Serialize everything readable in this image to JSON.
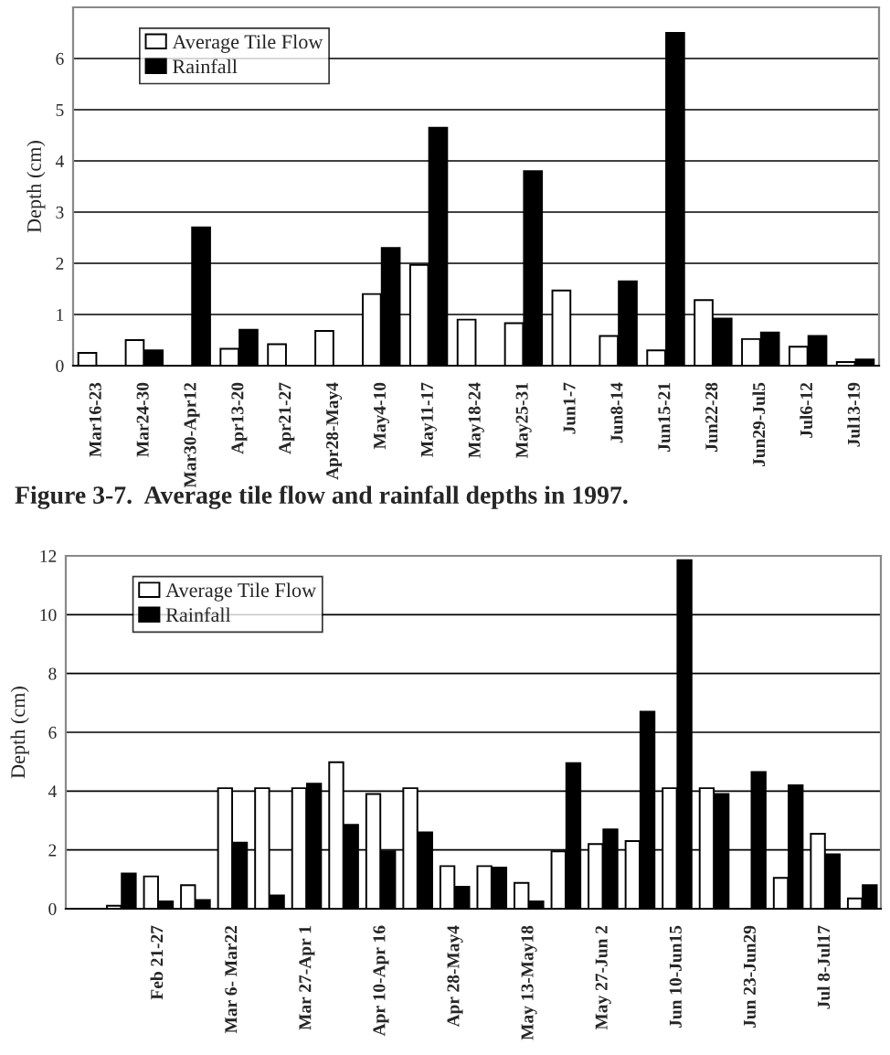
{
  "chart_data": [
    {
      "type": "bar",
      "ylabel": "Depth (cm)",
      "categories": [
        "Mar16-23",
        "Mar24-30",
        "Mar30-Apr12",
        "Apr13-20",
        "Apr21-27",
        "Apr28-May4",
        "May4-10",
        "May11-17",
        "May18-24",
        "May25-31",
        "Jun1-7",
        "Jun8-14",
        "Jun15-21",
        "Jun22-28",
        "Jun29-Jul5",
        "Jul6-12",
        "Jul13-19"
      ],
      "series": [
        {
          "name": "Average Tile Flow",
          "color": "#ffffff",
          "values": [
            0.25,
            0.5,
            null,
            0.33,
            0.42,
            0.68,
            1.4,
            1.97,
            0.9,
            0.83,
            1.47,
            0.58,
            0.3,
            1.28,
            0.52,
            0.37,
            0.07
          ]
        },
        {
          "name": "Rainfall",
          "color": "#000000",
          "values": [
            null,
            0.3,
            2.7,
            0.7,
            null,
            null,
            2.3,
            4.65,
            null,
            3.8,
            null,
            1.65,
            6.5,
            0.92,
            0.65,
            0.58,
            0.12
          ]
        }
      ],
      "ylim": [
        0,
        7
      ],
      "yticks": [
        0,
        1,
        2,
        3,
        4,
        5,
        6
      ],
      "grid": "y",
      "legend": "top left",
      "annotations": [
        "Figure 3-7.  Average tile flow and rainfall depths in 1997."
      ]
    },
    {
      "type": "bar",
      "ylabel": "Depth (cm)",
      "categories": [
        null,
        null,
        "Feb 21-27",
        null,
        "Mar 6- Mar22",
        null,
        "Mar 27-Apr 1",
        null,
        "Apr 10-Apr 16",
        null,
        "Apr 28-May4",
        null,
        "May 13-May18",
        null,
        "May 27-Jun 2",
        null,
        "Jun 10-Jun15",
        null,
        "Jun 23-Jun29",
        null,
        "Jul 8-Jul17",
        null
      ],
      "series": [
        {
          "name": "Average Tile Flow",
          "color": "#ffffff",
          "values": [
            null,
            0.1,
            1.1,
            0.8,
            4.1,
            4.1,
            4.1,
            4.98,
            3.9,
            4.1,
            1.45,
            1.45,
            0.88,
            1.95,
            2.2,
            2.3,
            4.1,
            4.1,
            null,
            1.05,
            2.55,
            0.35
          ]
        },
        {
          "name": "Rainfall",
          "color": "#000000",
          "values": [
            null,
            1.2,
            0.25,
            0.3,
            2.25,
            0.45,
            4.25,
            2.85,
            1.95,
            2.6,
            0.75,
            1.4,
            0.25,
            4.95,
            2.7,
            6.7,
            11.85,
            3.9,
            4.65,
            4.2,
            1.85,
            0.8
          ]
        }
      ],
      "ylim": [
        0,
        12
      ],
      "yticks": [
        0,
        2,
        4,
        6,
        8,
        10,
        12
      ],
      "grid": "y",
      "legend": "top left"
    }
  ]
}
